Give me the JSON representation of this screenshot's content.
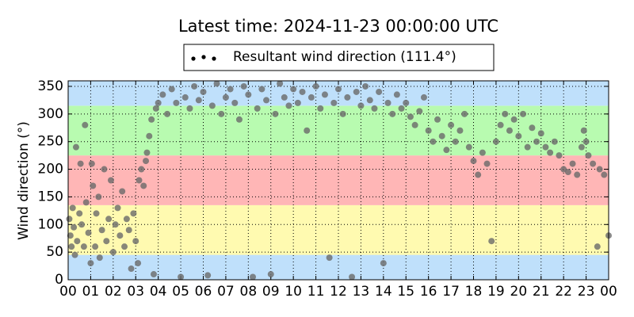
{
  "chart_data": {
    "type": "scatter",
    "title": "Latest time: 2024-11-23 00:00:00 UTC",
    "ylabel": "Wind direction (°)",
    "xlim": [
      0,
      24
    ],
    "ylim": [
      0,
      360
    ],
    "xticks": [
      {
        "value": 0,
        "label": "00"
      },
      {
        "value": 1,
        "label": "01"
      },
      {
        "value": 2,
        "label": "02"
      },
      {
        "value": 3,
        "label": "03"
      },
      {
        "value": 4,
        "label": "04"
      },
      {
        "value": 5,
        "label": "05"
      },
      {
        "value": 6,
        "label": "06"
      },
      {
        "value": 7,
        "label": "07"
      },
      {
        "value": 8,
        "label": "08"
      },
      {
        "value": 9,
        "label": "09"
      },
      {
        "value": 10,
        "label": "10"
      },
      {
        "value": 11,
        "label": "11"
      },
      {
        "value": 12,
        "label": "12"
      },
      {
        "value": 13,
        "label": "13"
      },
      {
        "value": 14,
        "label": "14"
      },
      {
        "value": 15,
        "label": "15"
      },
      {
        "value": 16,
        "label": "16"
      },
      {
        "value": 17,
        "label": "17"
      },
      {
        "value": 18,
        "label": "18"
      },
      {
        "value": 19,
        "label": "19"
      },
      {
        "value": 20,
        "label": "20"
      },
      {
        "value": 21,
        "label": "21"
      },
      {
        "value": 22,
        "label": "22"
      },
      {
        "value": 23,
        "label": "23"
      },
      {
        "value": 24,
        "label": "00"
      }
    ],
    "yticks": [
      0,
      50,
      100,
      150,
      200,
      250,
      300,
      350
    ],
    "grid": true,
    "legend_position": "top",
    "bands": [
      {
        "from": 0,
        "to": 45,
        "color": "#bfe0fb"
      },
      {
        "from": 45,
        "to": 135,
        "color": "#fffab0"
      },
      {
        "from": 135,
        "to": 225,
        "color": "#ffb6b6"
      },
      {
        "from": 225,
        "to": 315,
        "color": "#b8fbb0"
      },
      {
        "from": 315,
        "to": 360,
        "color": "#bfe0fb"
      }
    ],
    "series": [
      {
        "name": "Resultant wind direction (111.4°)",
        "color": "#6a6a6a",
        "x": [
          0.05,
          0.1,
          0.15,
          0.2,
          0.25,
          0.3,
          0.35,
          0.4,
          0.5,
          0.55,
          0.6,
          0.7,
          0.75,
          0.8,
          0.9,
          1.0,
          1.05,
          1.1,
          1.2,
          1.25,
          1.35,
          1.4,
          1.5,
          1.6,
          1.7,
          1.8,
          1.9,
          2.0,
          2.1,
          2.2,
          2.3,
          2.4,
          2.5,
          2.6,
          2.7,
          2.8,
          2.9,
          3.0,
          3.1,
          3.15,
          3.25,
          3.35,
          3.45,
          3.5,
          3.6,
          3.7,
          3.8,
          3.9,
          4.0,
          4.2,
          4.4,
          4.6,
          4.8,
          5.0,
          5.2,
          5.4,
          5.6,
          5.8,
          6.0,
          6.2,
          6.4,
          6.6,
          6.8,
          7.0,
          7.2,
          7.4,
          7.6,
          7.8,
          8.0,
          8.2,
          8.4,
          8.6,
          8.8,
          9.0,
          9.2,
          9.4,
          9.6,
          9.8,
          10.0,
          10.2,
          10.4,
          10.6,
          10.8,
          11.0,
          11.2,
          11.4,
          11.6,
          11.8,
          12.0,
          12.2,
          12.4,
          12.6,
          12.8,
          13.0,
          13.2,
          13.4,
          13.6,
          13.8,
          14.0,
          14.2,
          14.4,
          14.6,
          14.8,
          15.0,
          15.2,
          15.4,
          15.6,
          15.8,
          16.0,
          16.2,
          16.4,
          16.6,
          16.8,
          17.0,
          17.2,
          17.4,
          17.6,
          17.8,
          18.0,
          18.2,
          18.4,
          18.6,
          18.8,
          19.0,
          19.2,
          19.4,
          19.6,
          19.8,
          20.0,
          20.2,
          20.4,
          20.6,
          20.8,
          21.0,
          21.2,
          21.4,
          21.6,
          21.8,
          22.0,
          22.2,
          22.4,
          22.6,
          22.8,
          22.9,
          23.0,
          23.1,
          23.3,
          23.5,
          23.6,
          23.8,
          24.0
        ],
        "values": [
          110,
          80,
          60,
          130,
          95,
          45,
          240,
          70,
          120,
          210,
          100,
          60,
          280,
          140,
          85,
          30,
          210,
          170,
          60,
          120,
          150,
          40,
          90,
          200,
          70,
          110,
          180,
          50,
          100,
          130,
          80,
          160,
          60,
          110,
          90,
          20,
          120,
          70,
          30,
          180,
          200,
          170,
          215,
          230,
          260,
          290,
          10,
          310,
          320,
          335,
          300,
          345,
          320,
          5,
          330,
          310,
          350,
          325,
          340,
          8,
          315,
          355,
          300,
          330,
          345,
          320,
          290,
          350,
          335,
          5,
          310,
          345,
          325,
          10,
          300,
          355,
          330,
          315,
          345,
          320,
          340,
          270,
          330,
          350,
          310,
          335,
          40,
          320,
          345,
          300,
          330,
          5,
          340,
          315,
          350,
          325,
          310,
          340,
          30,
          320,
          300,
          335,
          310,
          320,
          295,
          280,
          305,
          330,
          270,
          250,
          290,
          260,
          235,
          280,
          250,
          270,
          300,
          240,
          215,
          190,
          230,
          210,
          70,
          250,
          280,
          300,
          270,
          290,
          260,
          300,
          240,
          275,
          250,
          265,
          240,
          230,
          250,
          225,
          200,
          195,
          210,
          190,
          240,
          270,
          250,
          225,
          210,
          60,
          200,
          190,
          80
        ]
      }
    ]
  }
}
